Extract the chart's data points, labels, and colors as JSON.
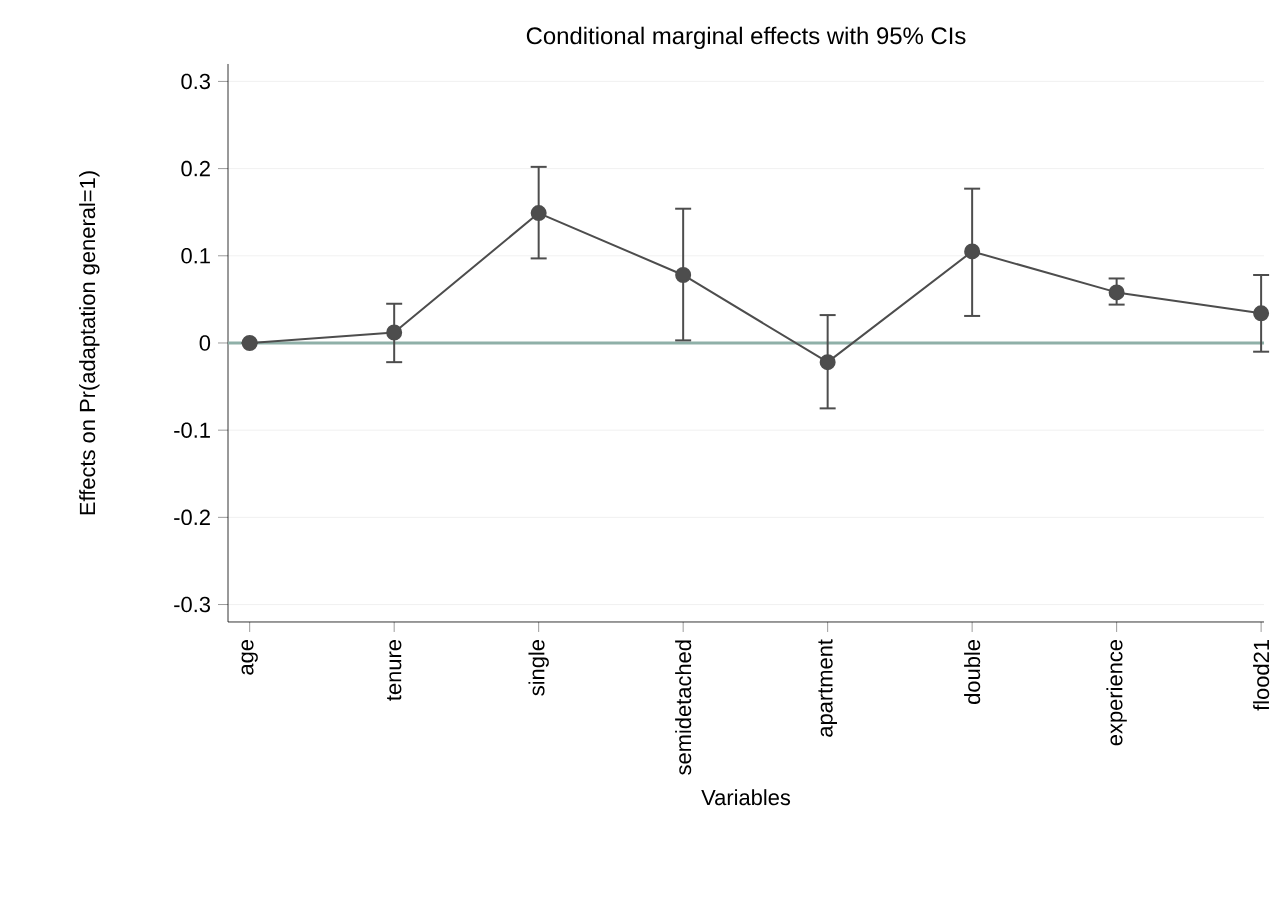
{
  "chart_data": {
    "type": "line",
    "title": "Conditional marginal effects with 95% CIs",
    "xlabel": "Variables",
    "ylabel": "Effects on Pr(adaptation general=1)",
    "categories": [
      "age",
      "tenure",
      "single",
      "semidetached",
      "apartment",
      "double",
      "experience",
      "flood21"
    ],
    "series": [
      {
        "color": "#4d4d4d",
        "values": [
          0,
          0.012,
          0.149,
          0.078,
          -0.022,
          0.105,
          0.058,
          0.034
        ],
        "errors": [
          null,
          [
            -0.022,
            0.045
          ],
          [
            0.097,
            0.202
          ],
          [
            0.003,
            0.154
          ],
          [
            -0.075,
            0.032
          ],
          [
            0.031,
            0.177
          ],
          [
            0.044,
            0.074
          ],
          [
            -0.01,
            0.078
          ]
        ]
      }
    ],
    "ylim": [
      -0.32,
      0.32
    ],
    "yticks": [
      -0.3,
      -0.2,
      -0.1,
      0,
      0.1,
      0.2,
      0.3
    ],
    "grid": "y",
    "marker": "circle",
    "line_style": "solid",
    "ref_lines": [
      {
        "axis": "y",
        "value": 0,
        "color": "#8fb0a8"
      }
    ]
  }
}
